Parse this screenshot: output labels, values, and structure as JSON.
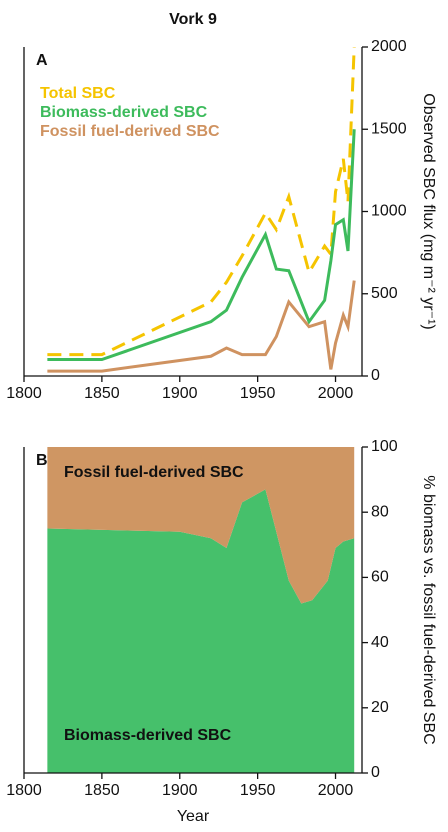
{
  "chart_data": [
    {
      "type": "line",
      "title": "Vork 9",
      "panel": "A",
      "ylabel": "Observed SBC flux (mg m⁻² yr⁻¹)",
      "legend": "upper left",
      "x": [
        1815,
        1850,
        1920,
        1930,
        1940,
        1955,
        1962,
        1970,
        1983,
        1993,
        1997,
        2000,
        2005,
        2008,
        2012
      ],
      "series": [
        {
          "name": "Total SBC",
          "color": "#f5c400",
          "style": "dashed",
          "values": [
            130,
            130,
            450,
            570,
            730,
            990,
            890,
            1090,
            630,
            790,
            740,
            1120,
            1320,
            1060,
            2000
          ]
        },
        {
          "name": "Biomass-derived SBC",
          "color": "#3dbb5c",
          "style": "solid",
          "values": [
            100,
            100,
            330,
            400,
            600,
            860,
            650,
            640,
            330,
            460,
            700,
            920,
            950,
            760,
            1500
          ]
        },
        {
          "name": "Fossil fuel-derived SBC",
          "color": "#cf9260",
          "style": "solid",
          "values": [
            30,
            30,
            120,
            170,
            130,
            130,
            240,
            450,
            300,
            330,
            40,
            200,
            370,
            300,
            580
          ]
        }
      ],
      "xlim": [
        1800,
        2017
      ],
      "xticks": [
        1800,
        1850,
        1900,
        1950,
        2000
      ],
      "ylim": [
        0,
        2000
      ],
      "yticks": [
        0,
        500,
        1000,
        1500,
        2000
      ]
    },
    {
      "type": "area",
      "panel": "B",
      "ylabel": "% biomass vs. fossil fuel-derived SBC",
      "xlabel": "Year",
      "x": [
        1815,
        1900,
        1920,
        1930,
        1940,
        1955,
        1970,
        1978,
        1985,
        1995,
        2000,
        2005,
        2012
      ],
      "series": [
        {
          "name": "Biomass-derived SBC",
          "color": "#46c06b",
          "values": [
            75,
            74,
            72,
            69,
            83,
            87,
            59,
            52,
            53,
            59,
            69,
            71,
            72
          ]
        },
        {
          "name": "Fossil fuel-derived SBC",
          "color": "#cf9663",
          "values": [
            25,
            26,
            28,
            31,
            17,
            13,
            41,
            48,
            47,
            41,
            31,
            29,
            28
          ]
        }
      ],
      "xlim": [
        1800,
        2017
      ],
      "xticks": [
        1800,
        1850,
        1900,
        1950,
        2000
      ],
      "ylim": [
        0,
        100
      ],
      "yticks": [
        0,
        20,
        40,
        60,
        80,
        100
      ]
    }
  ]
}
